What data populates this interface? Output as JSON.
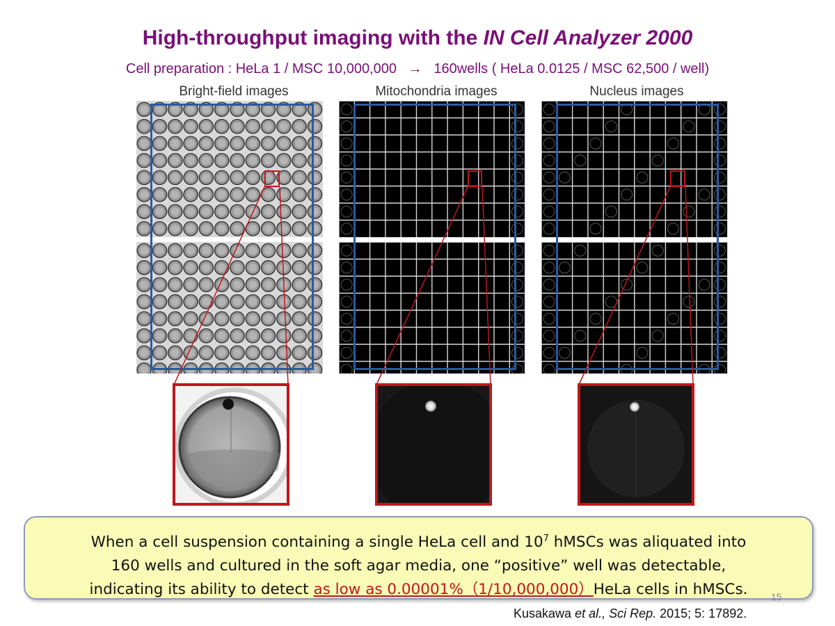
{
  "slide": {
    "title_prefix": "High-throughput imaging with the ",
    "title_italic": "IN Cell Analyzer 2000",
    "subtitle": "Cell preparation : HeLa 1 / MSC 10,000,000   →   160wells ( HeLa 0.0125 / MSC 62,500 / well)",
    "page_number": "15"
  },
  "panels": [
    {
      "label": "Bright-field images"
    },
    {
      "label": "Mitochondria images"
    },
    {
      "label": "Nucleus images"
    }
  ],
  "note": {
    "line1_pre": "When a cell suspension  containing a single HeLa cell and 10",
    "line1_sup": "7",
    "line1_post": " hMSCs was aliquated into",
    "line2": "160 wells and cultured in the soft agar media, one “positive” well was detectable,",
    "line3_pre": "indicating its ability to detect ",
    "line3_highlight": "as low as 0.00001%（1/10,000,000）",
    "line3_post": "HeLa cells in hMSCs."
  },
  "citation": {
    "authors": "Kusakawa ",
    "etal": "et al., Sci Rep.",
    "rest": " 2015; 5: 17892."
  },
  "colors": {
    "title": "#7a0f78",
    "frame_blue": "#2c5aa0",
    "highlight_red": "#c0161c",
    "note_bg": "#fbfbb8"
  }
}
